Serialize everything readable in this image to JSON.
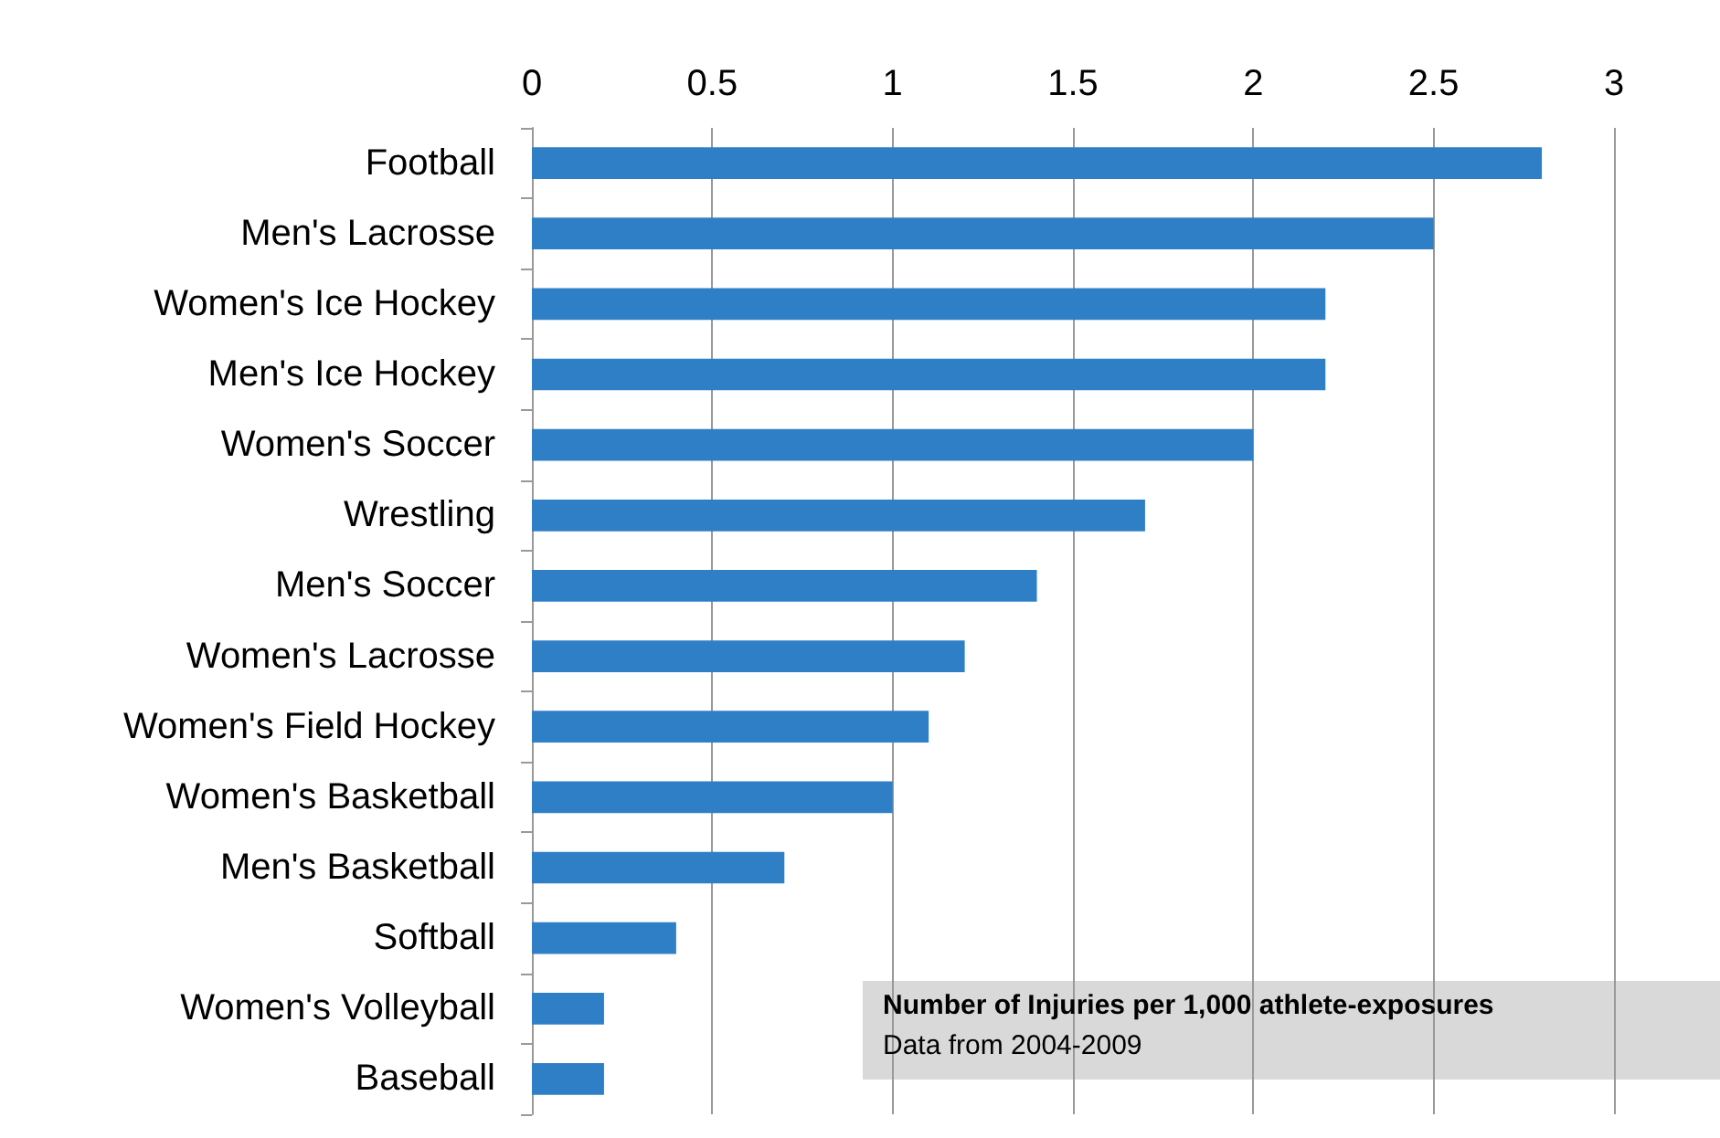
{
  "chart_data": {
    "type": "bar",
    "orientation": "horizontal",
    "categories": [
      "Football",
      "Men's Lacrosse",
      "Women's Ice Hockey",
      "Men's Ice Hockey",
      "Women's Soccer",
      "Wrestling",
      "Men's Soccer",
      "Women's Lacrosse",
      "Women's Field Hockey",
      "Women's Basketball",
      "Men's Basketball",
      "Softball",
      "Women's Volleyball",
      "Baseball"
    ],
    "values": [
      2.8,
      2.5,
      2.2,
      2.2,
      2.0,
      1.7,
      1.4,
      1.2,
      1.1,
      1.0,
      0.7,
      0.4,
      0.2,
      0.2
    ],
    "color": "#2f7fc6",
    "xlim": [
      0,
      3
    ],
    "xticks": [
      0,
      0.5,
      1,
      1.5,
      2,
      2.5,
      3
    ],
    "grid": "x",
    "annotations": [
      "Number of Injuries per 1,000 athlete-exposures",
      "Data from 2004-2009"
    ]
  }
}
